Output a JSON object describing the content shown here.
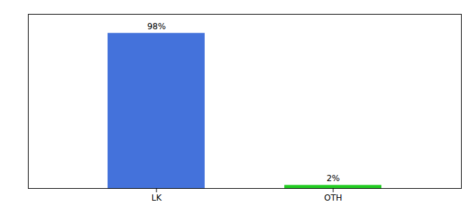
{
  "chart_data": {
    "type": "bar",
    "categories": [
      "LK",
      "OTH"
    ],
    "values": [
      98,
      2
    ],
    "colors": [
      "#4472db",
      "#22cc22"
    ],
    "value_labels": [
      "98%",
      "2%"
    ],
    "data_labels": true,
    "ylim": [
      0,
      110
    ],
    "tick_labels": "x",
    "grid": false
  }
}
